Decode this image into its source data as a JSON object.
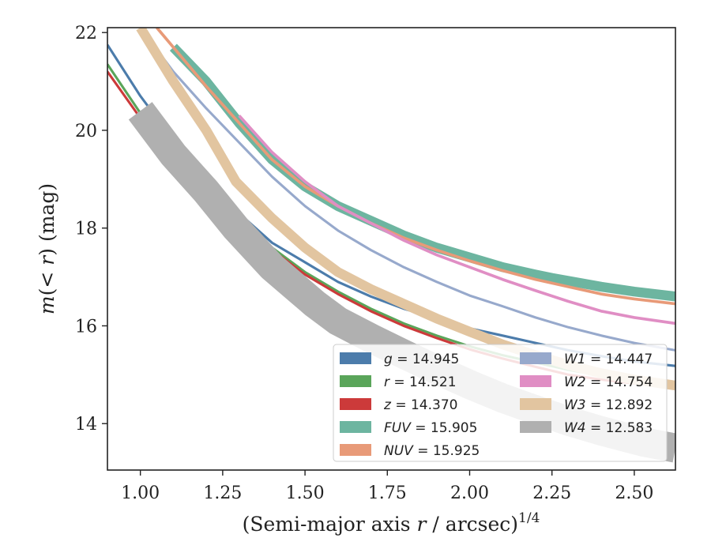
{
  "chart_data": {
    "type": "line",
    "xlabel": "(Semi-major axis r / arcsec)^{1/4}",
    "ylabel": "m(< r) (mag)",
    "xlim": [
      0.9,
      2.625
    ],
    "ylim": [
      22.1,
      13.05
    ],
    "y_inverted": true,
    "xticks": [
      1.0,
      1.25,
      1.5,
      1.75,
      2.0,
      2.25,
      2.5
    ],
    "xtick_labels": [
      "1.00",
      "1.25",
      "1.50",
      "1.75",
      "2.00",
      "2.25",
      "2.50"
    ],
    "yticks": [
      14,
      16,
      18,
      20,
      22
    ],
    "ytick_labels": [
      "14",
      "16",
      "18",
      "20",
      "22"
    ],
    "grid": false,
    "legend_position": "lower-right",
    "legend_columns": 2,
    "series": [
      {
        "name": "g",
        "label_value": "14.945",
        "color": "#4c7cab",
        "band_width": 0.05,
        "x": [
          0.9,
          1.0,
          1.1,
          1.2,
          1.3,
          1.4,
          1.5,
          1.6,
          1.7,
          1.8,
          1.9,
          2.0,
          2.1,
          2.2,
          2.3,
          2.4,
          2.5,
          2.625
        ],
        "y": [
          21.75,
          20.7,
          19.8,
          19.0,
          18.3,
          17.7,
          17.3,
          16.9,
          16.6,
          16.35,
          16.15,
          15.95,
          15.8,
          15.65,
          15.5,
          15.38,
          15.27,
          15.18
        ]
      },
      {
        "name": "r",
        "label_value": "14.521",
        "color": "#5aa55a",
        "band_width": 0.05,
        "x": [
          0.9,
          1.0,
          1.1,
          1.2,
          1.3,
          1.4,
          1.5,
          1.6,
          1.7,
          1.8,
          1.9,
          2.0,
          2.1,
          2.2,
          2.3,
          2.4,
          2.5,
          2.625
        ],
        "y": [
          21.35,
          20.35,
          19.5,
          18.8,
          18.2,
          17.6,
          17.1,
          16.7,
          16.35,
          16.05,
          15.8,
          15.58,
          15.4,
          15.25,
          15.1,
          14.98,
          14.9,
          14.85
        ]
      },
      {
        "name": "z",
        "label_value": "14.370",
        "color": "#cc3a3a",
        "band_width": 0.05,
        "x": [
          0.9,
          1.0,
          1.1,
          1.2,
          1.3,
          1.4,
          1.5,
          1.6,
          1.7,
          1.8,
          1.9,
          2.0,
          2.1,
          2.2,
          2.3,
          2.4,
          2.5,
          2.625
        ],
        "y": [
          21.2,
          20.25,
          19.4,
          18.7,
          18.1,
          17.55,
          17.05,
          16.65,
          16.3,
          16.0,
          15.75,
          15.52,
          15.33,
          15.16,
          15.0,
          14.9,
          14.82,
          14.75
        ]
      },
      {
        "name": "FUV",
        "label_value": "15.905",
        "color": "#6db5a0",
        "band_width": 0.2,
        "x": [
          1.1,
          1.2,
          1.3,
          1.4,
          1.5,
          1.6,
          1.7,
          1.8,
          1.9,
          2.0,
          2.1,
          2.2,
          2.25,
          2.4,
          2.5,
          2.625
        ],
        "y": [
          21.7,
          21.0,
          20.15,
          19.4,
          18.85,
          18.45,
          18.15,
          17.85,
          17.6,
          17.4,
          17.2,
          17.05,
          16.98,
          16.8,
          16.7,
          16.6
        ]
      },
      {
        "name": "NUV",
        "label_value": "15.925",
        "color": "#e89a78",
        "band_width": 0.06,
        "x": [
          1.05,
          1.2,
          1.3,
          1.4,
          1.5,
          1.6,
          1.7,
          1.8,
          1.9,
          2.0,
          2.1,
          2.2,
          2.3,
          2.4,
          2.5,
          2.625
        ],
        "y": [
          22.1,
          20.9,
          20.15,
          19.4,
          18.85,
          18.45,
          18.1,
          17.8,
          17.55,
          17.33,
          17.13,
          16.95,
          16.8,
          16.65,
          16.55,
          16.45
        ]
      },
      {
        "name": "W1",
        "label_value": "14.447",
        "color": "#97a9cc",
        "band_width": 0.05,
        "x": [
          1.0,
          1.1,
          1.2,
          1.3,
          1.4,
          1.5,
          1.6,
          1.7,
          1.8,
          1.9,
          2.0,
          2.1,
          2.2,
          2.3,
          2.4,
          2.5,
          2.625
        ],
        "y": [
          22.1,
          21.2,
          20.45,
          19.75,
          19.05,
          18.45,
          17.95,
          17.55,
          17.2,
          16.9,
          16.62,
          16.4,
          16.17,
          15.97,
          15.8,
          15.65,
          15.5
        ]
      },
      {
        "name": "W2",
        "label_value": "14.754",
        "color": "#e08ec4",
        "band_width": 0.06,
        "x": [
          1.3,
          1.4,
          1.5,
          1.6,
          1.7,
          1.8,
          1.9,
          2.0,
          2.1,
          2.2,
          2.3,
          2.4,
          2.5,
          2.625
        ],
        "y": [
          20.3,
          19.55,
          18.95,
          18.45,
          18.1,
          17.75,
          17.45,
          17.2,
          16.95,
          16.72,
          16.5,
          16.3,
          16.17,
          16.05
        ]
      },
      {
        "name": "W3",
        "label_value": "12.892",
        "color": "#e2c5a0",
        "band_width": 0.2,
        "x": [
          1.0,
          1.1,
          1.2,
          1.29,
          1.4,
          1.5,
          1.6,
          1.7,
          1.8,
          1.9,
          2.0,
          2.1,
          2.2,
          2.3,
          2.4,
          2.5,
          2.625
        ],
        "y": [
          22.1,
          21.0,
          20.0,
          18.95,
          18.2,
          17.6,
          17.1,
          16.75,
          16.45,
          16.15,
          15.88,
          15.62,
          15.4,
          15.2,
          15.03,
          14.9,
          14.78
        ]
      },
      {
        "name": "W4",
        "label_value": "12.583",
        "color": "#b0b0b0",
        "band_width": 0.6,
        "x": [
          1.0,
          1.1,
          1.2,
          1.29,
          1.4,
          1.53,
          1.6,
          1.7,
          1.8,
          1.9,
          2.0,
          2.1,
          2.2,
          2.3,
          2.4,
          2.53,
          2.625
        ],
        "y": [
          20.4,
          19.5,
          18.75,
          18.0,
          17.2,
          16.45,
          16.1,
          15.75,
          15.42,
          15.1,
          14.8,
          14.52,
          14.28,
          14.05,
          13.85,
          13.62,
          13.5
        ]
      }
    ],
    "legend": [
      {
        "label": "g = 14.945",
        "series": "g"
      },
      {
        "label": "r = 14.521",
        "series": "r"
      },
      {
        "label": "z = 14.370",
        "series": "z"
      },
      {
        "label": "FUV = 15.905",
        "series": "FUV"
      },
      {
        "label": "NUV = 15.925",
        "series": "NUV"
      },
      {
        "label": "W1 = 14.447",
        "series": "W1"
      },
      {
        "label": "W2 = 14.754",
        "series": "W2"
      },
      {
        "label": "W3 = 12.892",
        "series": "W3"
      },
      {
        "label": "W4 = 12.583",
        "series": "W4"
      }
    ]
  }
}
